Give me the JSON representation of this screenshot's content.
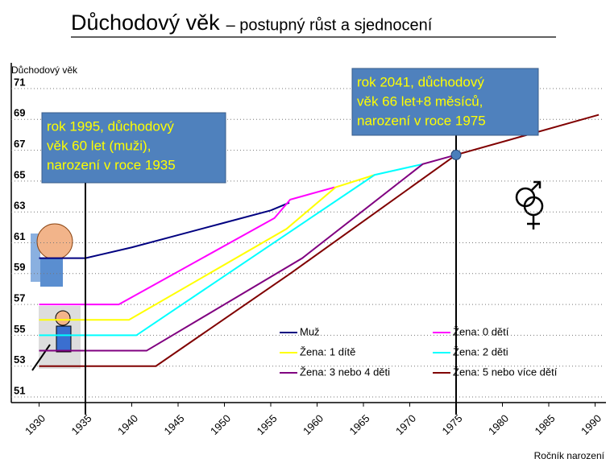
{
  "chart_data": {
    "type": "line",
    "title": "Důchodový věk",
    "subtitle": "– postupný růst a sjednocení",
    "y_label": "Důchodový věk",
    "x_label": "Ročník narození",
    "xlim": [
      1927,
      1991
    ],
    "ylim": [
      51,
      71
    ],
    "xticks": [
      1930,
      1935,
      1940,
      1945,
      1950,
      1955,
      1960,
      1965,
      1970,
      1975,
      1980,
      1985,
      1990
    ],
    "yticks": [
      51,
      53,
      55,
      57,
      59,
      61,
      63,
      65,
      67,
      69,
      71
    ],
    "grid": true,
    "series": [
      {
        "name": "Muž",
        "color": "#000080",
        "x": [
          1930,
          1935,
          1940,
          1945,
          1950,
          1955,
          1957
        ],
        "values": [
          60,
          60,
          60.7,
          61.5,
          62.3,
          63.1,
          63.6
        ]
      },
      {
        "name": "Žena: 0 dětí",
        "color": "#ff00ff",
        "x": [
          1930,
          1938.6,
          1955.4,
          1957.1,
          1961.9
        ],
        "values": [
          57,
          57,
          62.6,
          63.8,
          64.6
        ]
      },
      {
        "name": "Žena: 1 dítě",
        "color": "#ffff00",
        "x": [
          1930,
          1939.7,
          1956.7,
          1962,
          1966.2
        ],
        "values": [
          56,
          56,
          61.9,
          64.6,
          65.4
        ]
      },
      {
        "name": "Žena: 2 děti",
        "color": "#00ffff",
        "x": [
          1930,
          1940.5,
          1966.2,
          1971.4
        ],
        "values": [
          55,
          55,
          65.4,
          66.1
        ]
      },
      {
        "name": "Žena: 3 nebo 4 děti",
        "color": "#800080",
        "x": [
          1930,
          1941.6,
          1958.4,
          1971.4,
          1975
        ],
        "values": [
          54,
          54,
          60,
          66.1,
          66.7
        ]
      },
      {
        "name": "Žena: 5 nebo více dětí",
        "color": "#800000",
        "x": [
          1930,
          1942.6,
          1957.1,
          1975,
          1990.4
        ],
        "values": [
          53,
          53,
          59,
          66.7,
          69.3
        ]
      }
    ],
    "reference_lines": [
      1935,
      1975
    ],
    "highlight_point": {
      "x": 1975,
      "y": 66.7
    },
    "annotations": [
      {
        "lines": [
          "rok 1995, důchodový",
          "věk 60 let (muži),",
          "narození v roce 1935"
        ]
      },
      {
        "lines": [
          "rok 2041, důchodový",
          "věk 66 let+8 měsíců,",
          "narození v roce 1975"
        ]
      }
    ]
  }
}
